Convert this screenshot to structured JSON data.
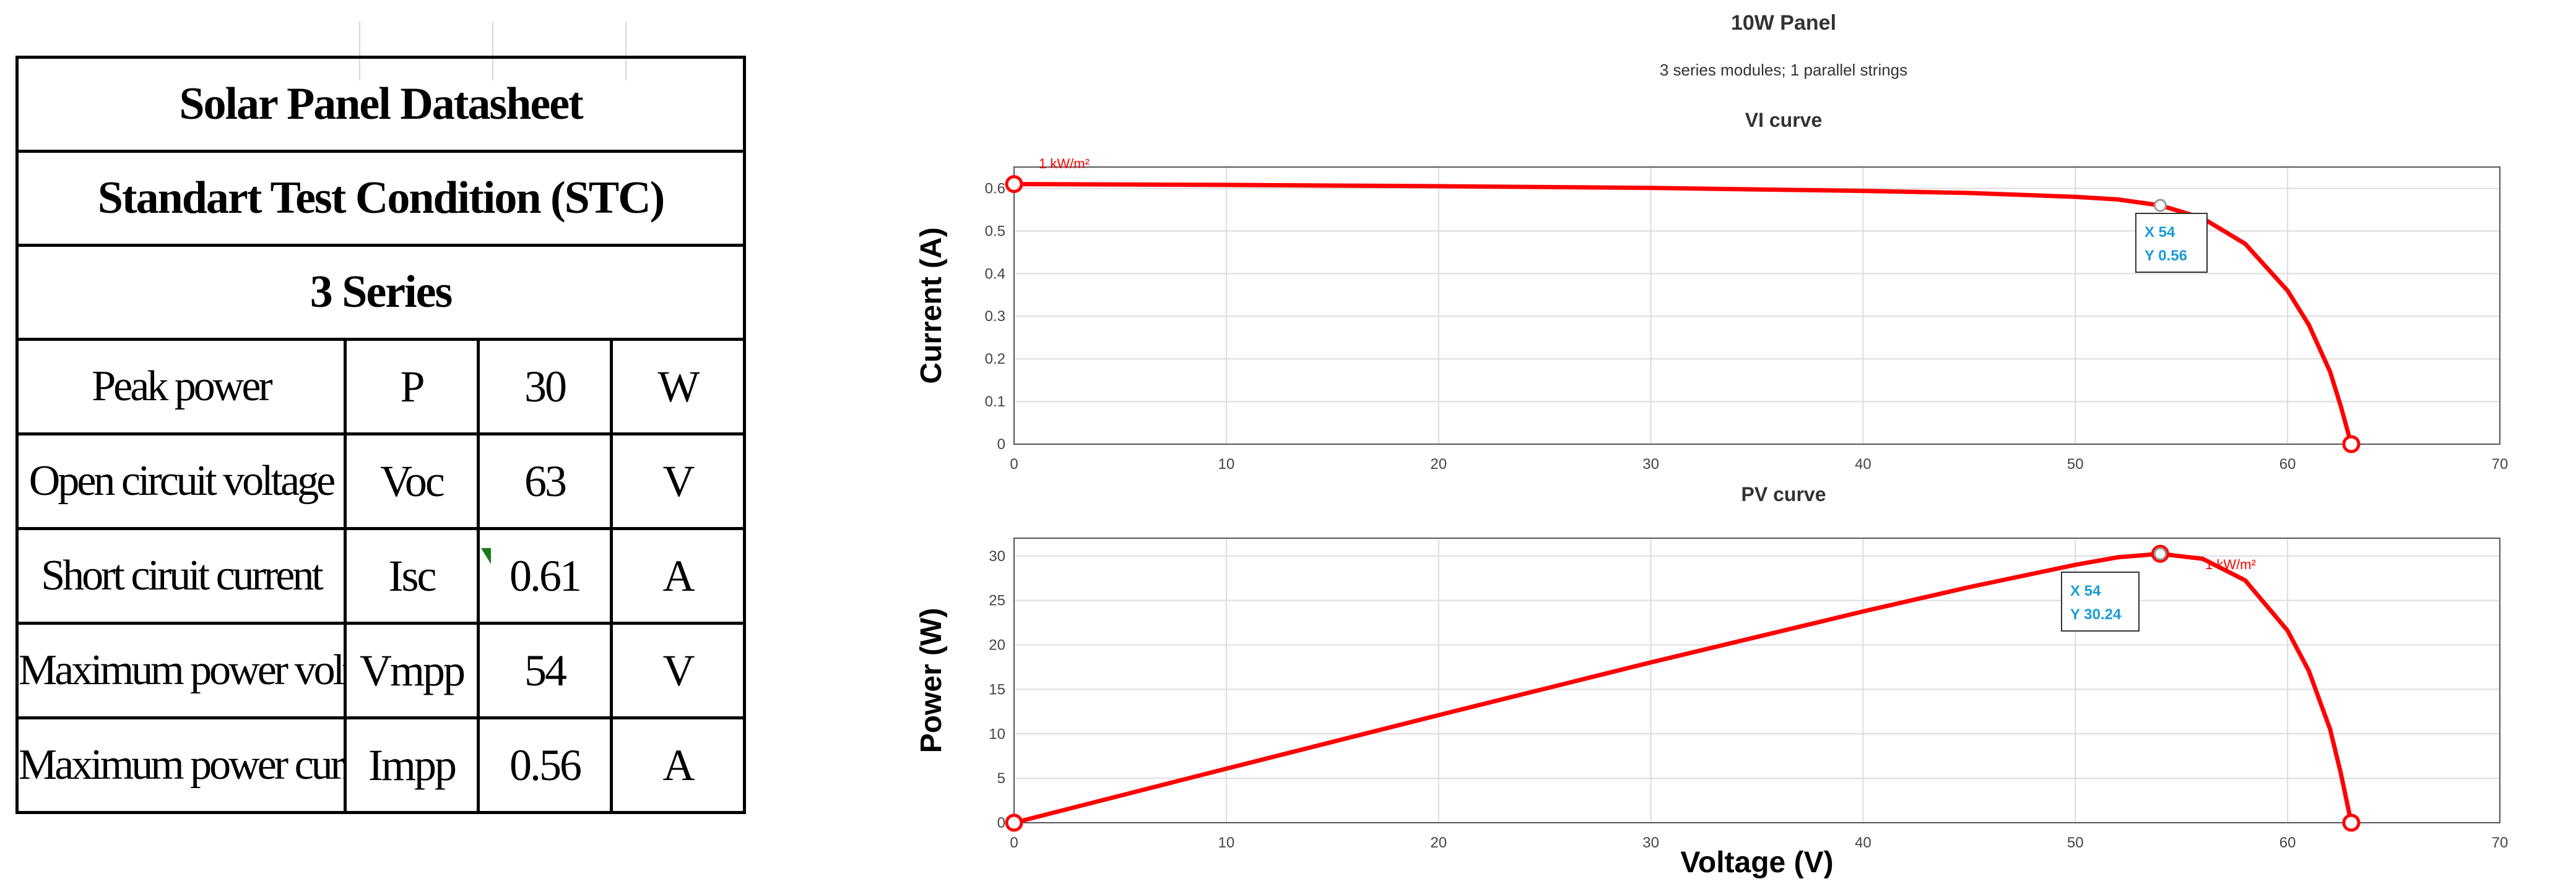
{
  "datasheet": {
    "title": "Solar Panel Datasheet",
    "condition": "Standart Test Condition (STC)",
    "series": "3 Series",
    "rows": [
      {
        "param": "Peak power",
        "symbol": "P",
        "value": "30",
        "unit": "W"
      },
      {
        "param": "Open circuit voltage",
        "symbol": "Voc",
        "value": "63",
        "unit": "V"
      },
      {
        "param": "Short ciruit current",
        "symbol": "Isc",
        "value": "0.61",
        "unit": "A"
      },
      {
        "param": "Maximum power voltage",
        "symbol": "Vmpp",
        "value": "54",
        "unit": "V"
      },
      {
        "param": "Maximum power current",
        "symbol": "Impp",
        "value": "0.56",
        "unit": "A"
      }
    ]
  },
  "figure": {
    "title": "10W Panel",
    "subtitle": "3 series modules; 1 parallel strings"
  },
  "chart_data": [
    {
      "type": "line",
      "title": "VI curve",
      "xlabel": "",
      "ylabel": "Current (A)",
      "xlim": [
        0,
        70
      ],
      "ylim": [
        0,
        0.65
      ],
      "x_ticks": [
        0,
        10,
        20,
        30,
        40,
        50,
        60,
        70
      ],
      "y_ticks": [
        0,
        0.1,
        0.2,
        0.3,
        0.4,
        0.5,
        0.6
      ],
      "series": [
        {
          "name": "1 kW/m²",
          "x": [
            0,
            10,
            20,
            30,
            40,
            45,
            50,
            52,
            54,
            56,
            58,
            60,
            61,
            62,
            62.5,
            63
          ],
          "y": [
            0.61,
            0.608,
            0.605,
            0.601,
            0.594,
            0.589,
            0.58,
            0.574,
            0.56,
            0.53,
            0.47,
            0.36,
            0.28,
            0.17,
            0.09,
            0
          ]
        }
      ],
      "markers": [
        {
          "x": 0,
          "y": 0.61
        },
        {
          "x": 63,
          "y": 0
        }
      ],
      "datatip": {
        "x": 54,
        "y": 0.56,
        "x_label": "X 54",
        "y_label": "Y 0.56"
      },
      "color": "#ff0000"
    },
    {
      "type": "line",
      "title": "PV curve",
      "xlabel": "Voltage (V)",
      "ylabel": "Power (W)",
      "xlim": [
        0,
        70
      ],
      "ylim": [
        0,
        32
      ],
      "x_ticks": [
        0,
        10,
        20,
        30,
        40,
        50,
        60,
        70
      ],
      "y_ticks": [
        0,
        5,
        10,
        15,
        20,
        25,
        30
      ],
      "series": [
        {
          "name": "1 kW/m²",
          "x": [
            0,
            10,
            20,
            30,
            40,
            45,
            50,
            52,
            54,
            56,
            58,
            60,
            61,
            62,
            62.5,
            63
          ],
          "y": [
            0,
            6.08,
            12.1,
            18.03,
            23.76,
            26.5,
            29.0,
            29.85,
            30.24,
            29.68,
            27.26,
            21.6,
            17.08,
            10.54,
            5.63,
            0
          ]
        }
      ],
      "markers": [
        {
          "x": 0,
          "y": 0
        },
        {
          "x": 54,
          "y": 30.24
        },
        {
          "x": 63,
          "y": 0
        }
      ],
      "datatip": {
        "x": 54,
        "y": 30.24,
        "x_label": "X 54",
        "y_label": "Y 30.24"
      },
      "color": "#ff0000"
    }
  ]
}
